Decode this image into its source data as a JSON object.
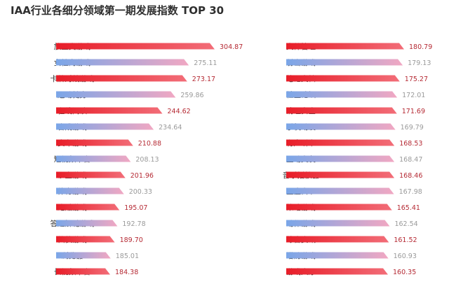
{
  "title": "IAA行业各细分领域第一期发展指数 TOP 30",
  "colors": {
    "red_start": "#e81d28",
    "red_end": "#f26d78",
    "blue_start": "#7aa6e8",
    "blue_end": "#f1a7c2",
    "red_value": "#b52a34",
    "blue_value": "#9a9a9a"
  },
  "chart_data": [
    {
      "type": "bar",
      "orientation": "horizontal",
      "categories": [
        "放置类游戏",
        "女性向游戏",
        "卡牌对战游戏",
        "运动健身",
        "在线阅读",
        "合成游戏",
        "赛车游戏",
        "短视频平台",
        "沙盒游戏",
        "体育游戏",
        "跑酷游戏",
        "答题解谜游戏",
        "仙侠游戏",
        "浏览器",
        "长视频平台"
      ],
      "values": [
        304.87,
        275.11,
        273.17,
        259.86,
        244.62,
        234.64,
        210.88,
        208.13,
        201.96,
        200.33,
        195.07,
        192.78,
        189.7,
        185.01,
        184.38
      ],
      "value_labels": [
        "304.87",
        "275.11",
        "273.17",
        "259.86",
        "244.62",
        "234.64",
        "210.88",
        "208.13",
        "201.96",
        "200.33",
        "195.07",
        "192.78",
        "189.70",
        "185.01",
        "184.38"
      ]
    },
    {
      "type": "bar",
      "orientation": "horizontal",
      "categories": [
        "文件管理",
        "射击游戏",
        "笔记文档",
        "社区论坛",
        "清理安全",
        "手机动漫",
        "有声听书",
        "互动交友",
        "音乐播放器",
        "星座占卜",
        "策略游戏",
        "动作游戏",
        "综合资讯",
        "塔防游戏",
        "游戏大厅"
      ],
      "values": [
        180.79,
        179.13,
        175.27,
        172.01,
        171.69,
        169.79,
        168.53,
        168.47,
        168.46,
        167.98,
        165.41,
        162.54,
        161.52,
        160.93,
        160.35
      ],
      "value_labels": [
        "180.79",
        "179.13",
        "175.27",
        "172.01",
        "171.69",
        "169.79",
        "168.53",
        "168.47",
        "168.46",
        "167.98",
        "165.41",
        "162.54",
        "161.52",
        "160.93",
        "160.35"
      ]
    }
  ]
}
